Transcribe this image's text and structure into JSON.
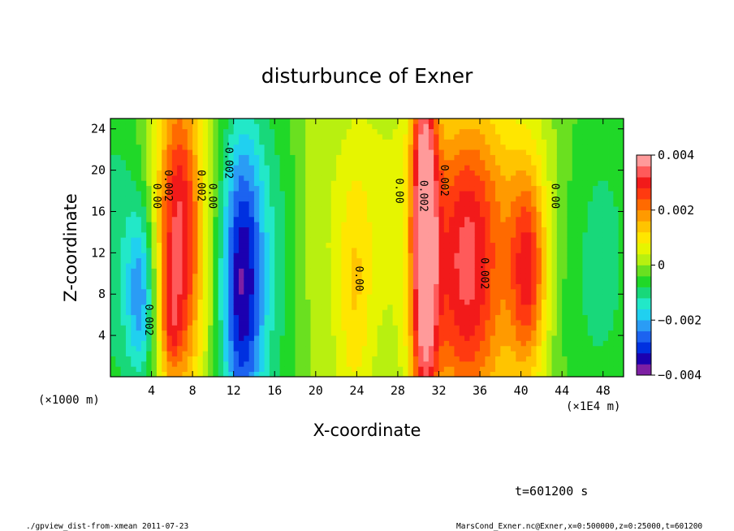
{
  "chart_data": {
    "type": "heatmap",
    "title": "disturbunce of Exner",
    "xlabel": "X-coordinate",
    "ylabel": "Z-coordinate",
    "x_unit_left": "(×1000 m)",
    "x_unit_right": "(×1E4 m)",
    "xlim": [
      0,
      50
    ],
    "ylim": [
      0,
      25
    ],
    "x_ticks": [
      4,
      8,
      12,
      16,
      20,
      24,
      28,
      32,
      36,
      40,
      44,
      48
    ],
    "y_ticks": [
      4,
      8,
      12,
      16,
      20,
      24
    ],
    "colorbar": {
      "min": -0.004,
      "max": 0.004,
      "tick_values": [
        0.004,
        0.002,
        0,
        -0.002,
        -0.004
      ],
      "tick_labels": [
        "0.004",
        "0.002",
        "0",
        "−0.002",
        "−0.004"
      ],
      "colors": [
        "#7d1fa3",
        "#1b00b0",
        "#0030e0",
        "#1c63f0",
        "#2a9cf5",
        "#20d0f0",
        "#22e8c8",
        "#18d87a",
        "#20d828",
        "#6ae020",
        "#b8f010",
        "#e6f500",
        "#ffe600",
        "#ffc400",
        "#ff9a00",
        "#ff6a00",
        "#ff3a10",
        "#f21a1a",
        "#ff5a5a",
        "#ff9a9a"
      ]
    },
    "contour_labels": [
      {
        "text": "0.00",
        "x": 4.2,
        "y": 17.5
      },
      {
        "text": "0.002",
        "x": 5.3,
        "y": 18.5
      },
      {
        "text": "0.002",
        "x": 8.5,
        "y": 18.5
      },
      {
        "text": "0.00",
        "x": 9.6,
        "y": 17.5
      },
      {
        "text": "-0.002",
        "x": 11.2,
        "y": 21.0
      },
      {
        "text": "0.00",
        "x": 23.9,
        "y": 9.5
      },
      {
        "text": "0.00",
        "x": 27.8,
        "y": 18.0
      },
      {
        "text": "0.002",
        "x": 30.2,
        "y": 17.5
      },
      {
        "text": "0.002",
        "x": 32.2,
        "y": 19.0
      },
      {
        "text": "0.002",
        "x": 36.1,
        "y": 10.0
      },
      {
        "text": "0.00",
        "x": 43.0,
        "y": 17.5
      },
      {
        "text": "0.002",
        "x": 3.4,
        "y": 5.5
      }
    ],
    "regions": [
      {
        "x": 6.7,
        "z": 13.5,
        "sx": 1.6,
        "sz": 11,
        "v": 0.0034
      },
      {
        "x": 5.9,
        "z": 5.0,
        "sx": 0.6,
        "sz": 3,
        "v": 0.001
      },
      {
        "x": 12.8,
        "z": 9.0,
        "sx": 1.5,
        "sz": 11,
        "v": -0.0034
      },
      {
        "x": 3.0,
        "z": 8.0,
        "sx": 1.0,
        "sz": 6,
        "v": -0.002
      },
      {
        "x": 30.6,
        "z": 14.0,
        "sx": 0.9,
        "sz": 14,
        "v": 0.004
      },
      {
        "x": 34.6,
        "z": 12.0,
        "sx": 2.6,
        "sz": 9,
        "v": 0.0026
      },
      {
        "x": 35.0,
        "z": 2.0,
        "sx": 3.5,
        "sz": 6,
        "v": 0.001
      },
      {
        "x": 40.7,
        "z": 10.0,
        "sx": 1.3,
        "sz": 7,
        "v": 0.0026
      },
      {
        "x": 23.8,
        "z": 8.0,
        "sx": 1.2,
        "sz": 9,
        "v": 0.001
      },
      {
        "x": 16.5,
        "z": 12.0,
        "sx": 2.2,
        "sz": 14,
        "v": -0.001
      },
      {
        "x": 47.5,
        "z": 12.0,
        "sx": 3.5,
        "sz": 14,
        "v": -0.001
      },
      {
        "x": 0.5,
        "z": 12.0,
        "sx": 2.0,
        "sz": 14,
        "v": -0.001
      },
      {
        "x": 19.5,
        "z": 14.0,
        "sx": 2.0,
        "sz": 12,
        "v": 0.0005
      },
      {
        "x": 37.0,
        "z": 18.0,
        "sx": 5.0,
        "sz": 8,
        "v": 0.0008
      },
      {
        "x": 26.0,
        "z": 16.0,
        "sx": 2.5,
        "sz": 10,
        "v": 0.0004
      }
    ]
  },
  "time_label": "t=601200 s",
  "footer_left": "./gpview_dist-from-xmean  2011-07-23",
  "footer_right": "MarsCond_Exner.nc@Exner,x=0:500000,z=0:25000,t=601200"
}
